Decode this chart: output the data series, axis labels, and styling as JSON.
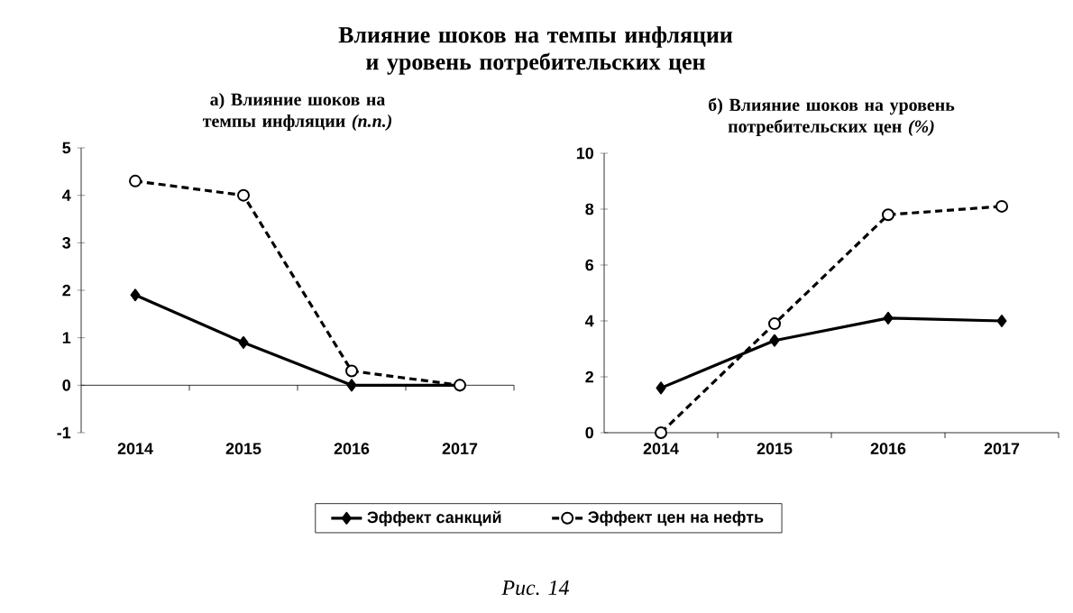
{
  "chart_data": [
    {
      "type": "other",
      "title": "Влияние шоков на темпы инфляции и уровень потребительских цен",
      "annotations": [
        "Рис. 14"
      ]
    },
    {
      "type": "line",
      "title": "а) Влияние шоков на темпы инфляции *(п.п.)*",
      "categories": [
        "2014",
        "2015",
        "2016",
        "2017"
      ],
      "ylim": [
        -1,
        5
      ],
      "yticks": [
        -1,
        0,
        1,
        2,
        3,
        4,
        5
      ],
      "legend": "bottom",
      "series": [
        {
          "name": "Эффект санкций",
          "color": "#000000",
          "marker": "diamond",
          "line_style": "solid",
          "values": [
            1.9,
            0.9,
            0.0,
            0.0
          ]
        },
        {
          "name": "Эффект цен на нефть",
          "color": "#000000",
          "marker": "circle",
          "line_style": "dashed",
          "values": [
            4.3,
            4.0,
            0.3,
            0.0
          ]
        }
      ]
    },
    {
      "type": "line",
      "title": "б) Влияние шоков на уровень потребительских цен *(%)*",
      "categories": [
        "2014",
        "2015",
        "2016",
        "2017"
      ],
      "ylim": [
        0,
        10
      ],
      "yticks": [
        0,
        2,
        4,
        6,
        8,
        10
      ],
      "series": [
        {
          "color": "#000000",
          "marker": "diamond",
          "line_style": "solid",
          "values": [
            1.6,
            3.3,
            4.1,
            4.0
          ]
        },
        {
          "color": "#000000",
          "marker": "circle",
          "line_style": "dashed",
          "values": [
            0.0,
            3.9,
            7.8,
            8.1
          ]
        }
      ]
    }
  ]
}
